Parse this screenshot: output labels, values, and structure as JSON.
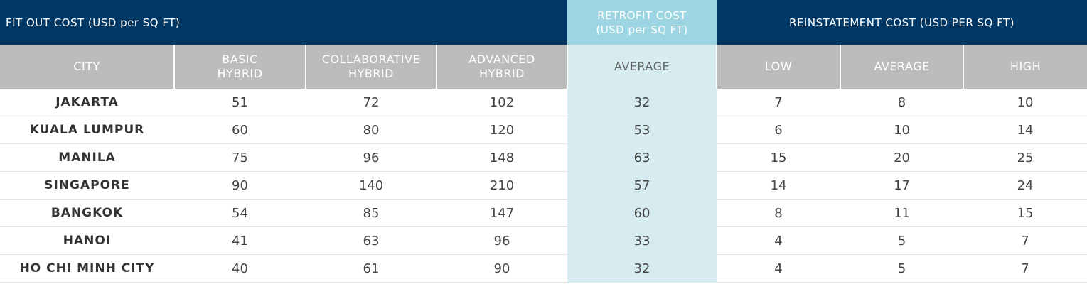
{
  "groups": [
    {
      "lines": [
        "FIT OUT COST (USD per SQ FT)"
      ],
      "span": 4
    },
    {
      "lines": [
        "RETROFIT COST",
        "(USD per SQ FT)"
      ],
      "span": 1
    },
    {
      "lines": [
        "REINSTATEMENT COST (USD PER SQ FT)"
      ],
      "span": 3
    }
  ],
  "columns": [
    {
      "lines": [
        "CITY"
      ]
    },
    {
      "lines": [
        "BASIC",
        "HYBRID"
      ]
    },
    {
      "lines": [
        "COLLABORATIVE",
        "HYBRID"
      ]
    },
    {
      "lines": [
        "ADVANCED",
        "HYBRID"
      ]
    },
    {
      "lines": [
        "AVERAGE"
      ]
    },
    {
      "lines": [
        "LOW"
      ]
    },
    {
      "lines": [
        "AVERAGE"
      ]
    },
    {
      "lines": [
        "HIGH"
      ]
    }
  ],
  "rows": [
    [
      "JAKARTA",
      51,
      72,
      102,
      32,
      7,
      8,
      10
    ],
    [
      "KUALA LUMPUR",
      60,
      80,
      120,
      53,
      6,
      10,
      14
    ],
    [
      "MANILA",
      75,
      96,
      148,
      63,
      15,
      20,
      25
    ],
    [
      "SINGAPORE",
      90,
      140,
      210,
      57,
      14,
      17,
      24
    ],
    [
      "BANGKOK",
      54,
      85,
      147,
      60,
      8,
      11,
      15
    ],
    [
      "HANOI",
      41,
      63,
      96,
      33,
      4,
      5,
      7
    ],
    [
      "HO CHI MINH CITY",
      40,
      61,
      90,
      32,
      4,
      5,
      7
    ]
  ]
}
